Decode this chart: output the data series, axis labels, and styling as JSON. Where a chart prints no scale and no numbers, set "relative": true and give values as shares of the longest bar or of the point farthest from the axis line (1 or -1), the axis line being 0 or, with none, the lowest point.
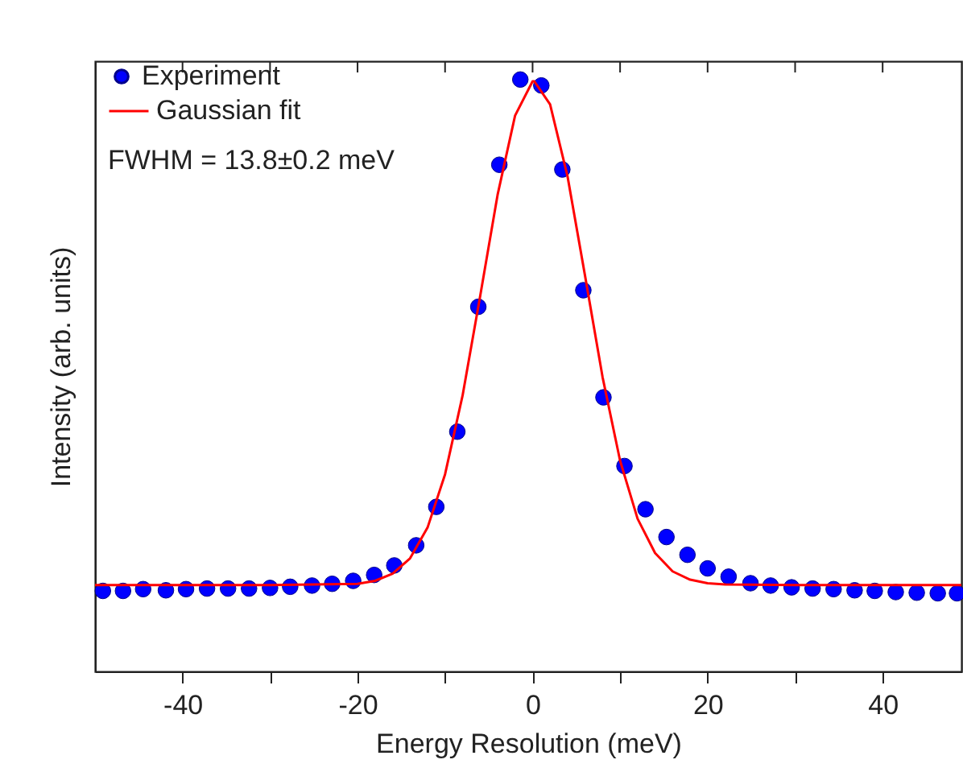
{
  "chart_data": {
    "type": "scatter",
    "relative": true,
    "xlabel": "Energy Resolution (meV)",
    "ylabel": "Intensity (arb. units)",
    "xlim": [
      -50,
      49
    ],
    "xticks": [
      -40,
      {
        "value": -30,
        "label": null
      },
      -20,
      {
        "value": -10,
        "label": null
      },
      0,
      {
        "value": 10,
        "label": null
      },
      20,
      {
        "value": 30,
        "label": null
      },
      40
    ],
    "grid": false,
    "legend": "top left",
    "tick_labels": "x",
    "annotations": [
      "FWHM = 13.8±0.2 meV"
    ],
    "series": [
      {
        "name": "Experiment",
        "marker": "circle",
        "color": "#0000ff",
        "x": [
          -49.1,
          -46.8,
          -44.5,
          -41.9,
          -39.6,
          -37.2,
          -34.8,
          -32.4,
          -30.0,
          -27.7,
          -25.2,
          -22.9,
          -20.5,
          -18.1,
          -15.8,
          -13.3,
          -11.0,
          -8.6,
          -6.2,
          -3.8,
          -1.4,
          1.0,
          3.4,
          5.8,
          8.1,
          10.5,
          12.9,
          15.3,
          17.7,
          20.0,
          22.4,
          24.9,
          27.2,
          29.6,
          32.0,
          34.4,
          36.8,
          39.1,
          41.5,
          43.9,
          46.3,
          48.5
        ],
        "values": [
          0.136,
          0.136,
          0.139,
          0.137,
          0.139,
          0.14,
          0.14,
          0.14,
          0.141,
          0.143,
          0.145,
          0.148,
          0.153,
          0.163,
          0.179,
          0.213,
          0.278,
          0.405,
          0.616,
          0.856,
          1.0,
          0.99,
          0.848,
          0.644,
          0.463,
          0.347,
          0.274,
          0.227,
          0.197,
          0.174,
          0.16,
          0.149,
          0.145,
          0.142,
          0.14,
          0.139,
          0.137,
          0.136,
          0.134,
          0.133,
          0.132,
          0.132
        ]
      },
      {
        "name": "Gaussian fit",
        "type": "line",
        "line_style": "solid",
        "color": "#ff0000",
        "x": [
          -50,
          -30,
          -20,
          -18,
          -16,
          -14,
          -12,
          -10,
          -8,
          -6,
          -4,
          -2,
          0,
          0.2,
          2,
          4,
          6,
          8,
          10,
          12,
          14,
          16,
          18,
          20,
          22,
          30,
          49
        ],
        "values": [
          0.146,
          0.146,
          0.148,
          0.153,
          0.165,
          0.191,
          0.243,
          0.333,
          0.466,
          0.633,
          0.805,
          0.939,
          0.997,
          0.997,
          0.958,
          0.836,
          0.668,
          0.497,
          0.356,
          0.258,
          0.2,
          0.169,
          0.155,
          0.149,
          0.147,
          0.146,
          0.146
        ]
      }
    ]
  }
}
